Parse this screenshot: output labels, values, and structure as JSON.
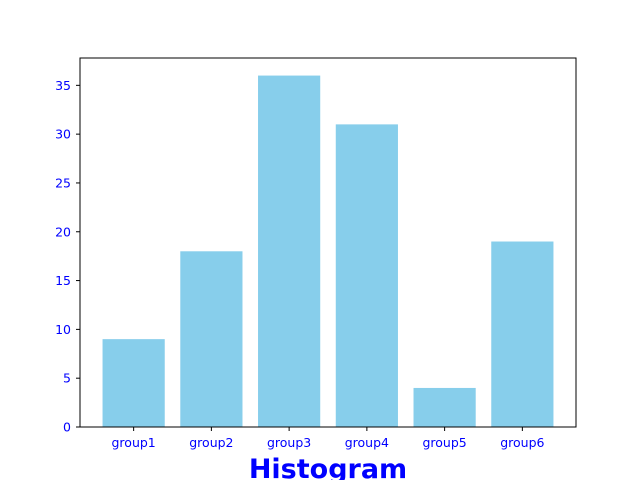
{
  "chart_data": {
    "type": "bar",
    "title": "Histogram",
    "xlabel": "",
    "ylabel": "",
    "categories": [
      "group1",
      "group2",
      "group3",
      "group4",
      "group5",
      "group6"
    ],
    "values": [
      9,
      18,
      36,
      31,
      4,
      19
    ],
    "ylim": [
      0,
      37.8
    ],
    "yticks": [
      0,
      5,
      10,
      15,
      20,
      25,
      30,
      35
    ],
    "grid": false,
    "legend": "none",
    "colors": {
      "bar": "#87ceeb",
      "text": "#0000ff",
      "axis": "#000000"
    }
  }
}
